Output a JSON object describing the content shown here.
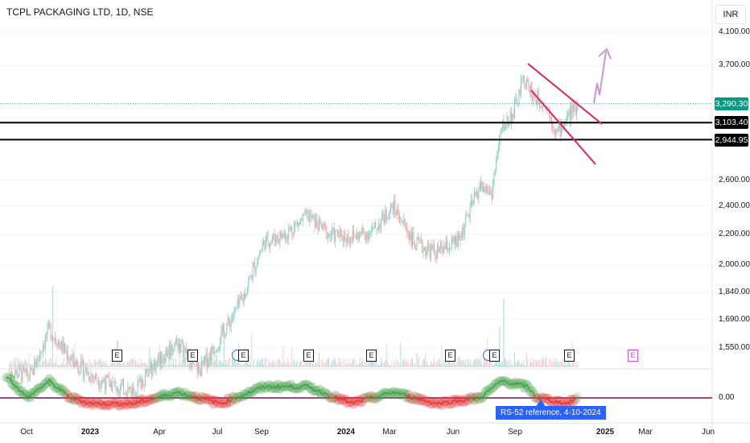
{
  "header": {
    "title": "TCPL PACKAGING LTD, 1D, NSE",
    "currency": "INR"
  },
  "price_tags": {
    "last": "3,290.30",
    "resistance": "3,103.40",
    "support": "2,944.95"
  },
  "indicator": {
    "zero_label": "0.00",
    "rs_tooltip": "RS-52 reference, 4-10-2024"
  },
  "events": [
    "E",
    "E",
    "E",
    "E",
    "E",
    "E",
    "E",
    "E"
  ],
  "colors": {
    "up": "#26a69a",
    "down": "#ef5350",
    "up_candle": "#7ed3c8",
    "down_candle": "#f4a3a3",
    "channel": "#e91e63",
    "arrow": "#ce93d8",
    "rs_line_up": "#43a047",
    "rs_line_down": "#e53935",
    "last_price": "#089981",
    "levels": "#000000"
  },
  "chart_data": {
    "type": "candlestick",
    "title": "TCPL PACKAGING LTD, 1D, NSE",
    "y_scale": "log",
    "y_ticks": [
      "4,100.00",
      "3,700.00",
      "3,290.30",
      "3,103.40",
      "2,944.95",
      "2,600.00",
      "2,400.00",
      "2,200.00",
      "2,000.00",
      "1,840.00",
      "1,690.00",
      "1,550.00"
    ],
    "x_ticks": [
      "Oct",
      "2023",
      "Apr",
      "Jul",
      "Sep",
      "2024",
      "Mar",
      "Jun",
      "Sep",
      "2025",
      "Mar",
      "Jun"
    ],
    "x_ticks_bold": [
      "2023",
      "2024",
      "2025"
    ],
    "price_path": [
      {
        "date": "2022-09-20",
        "close": 1440
      },
      {
        "date": "2022-10-20",
        "close": 1420
      },
      {
        "date": "2022-11-15",
        "close": 1640
      },
      {
        "date": "2022-12-15",
        "close": 1500
      },
      {
        "date": "2023-01-15",
        "close": 1420
      },
      {
        "date": "2023-02-15",
        "close": 1380
      },
      {
        "date": "2023-03-15",
        "close": 1360
      },
      {
        "date": "2023-04-15",
        "close": 1480
      },
      {
        "date": "2023-05-15",
        "close": 1580
      },
      {
        "date": "2023-06-15",
        "close": 1440
      },
      {
        "date": "2023-07-15",
        "close": 1600
      },
      {
        "date": "2023-08-15",
        "close": 1800
      },
      {
        "date": "2023-09-15",
        "close": 2150
      },
      {
        "date": "2023-10-15",
        "close": 2200
      },
      {
        "date": "2023-11-15",
        "close": 2330
      },
      {
        "date": "2023-12-15",
        "close": 2200
      },
      {
        "date": "2024-01-15",
        "close": 2180
      },
      {
        "date": "2024-02-15",
        "close": 2220
      },
      {
        "date": "2024-03-15",
        "close": 2400
      },
      {
        "date": "2024-04-15",
        "close": 2130
      },
      {
        "date": "2024-05-15",
        "close": 2080
      },
      {
        "date": "2024-06-15",
        "close": 2150
      },
      {
        "date": "2024-07-15",
        "close": 2550
      },
      {
        "date": "2024-08-01",
        "close": 2500
      },
      {
        "date": "2024-08-15",
        "close": 3050
      },
      {
        "date": "2024-09-01",
        "close": 3200
      },
      {
        "date": "2024-09-15",
        "close": 3550
      },
      {
        "date": "2024-10-01",
        "close": 3350
      },
      {
        "date": "2024-10-15",
        "close": 3300
      },
      {
        "date": "2024-11-01",
        "close": 3000
      },
      {
        "date": "2024-11-15",
        "close": 3150
      },
      {
        "date": "2024-12-01",
        "close": 3290
      }
    ],
    "levels": [
      {
        "name": "last",
        "value": 3290.3
      },
      {
        "name": "resistance",
        "value": 3103.4
      },
      {
        "name": "support",
        "value": 2944.95
      }
    ],
    "rs_series": [
      {
        "date": "2022-09-15",
        "value": 0.04
      },
      {
        "date": "2022-10-15",
        "value": 0.0
      },
      {
        "date": "2022-11-15",
        "value": 0.03
      },
      {
        "date": "2022-12-15",
        "value": 0.0
      },
      {
        "date": "2023-01-15",
        "value": -0.01
      },
      {
        "date": "2023-03-15",
        "value": -0.01
      },
      {
        "date": "2023-05-15",
        "value": 0.01
      },
      {
        "date": "2023-07-15",
        "value": -0.01
      },
      {
        "date": "2023-09-15",
        "value": 0.02
      },
      {
        "date": "2023-11-15",
        "value": 0.02
      },
      {
        "date": "2024-01-15",
        "value": -0.01
      },
      {
        "date": "2024-03-15",
        "value": 0.01
      },
      {
        "date": "2024-05-15",
        "value": -0.01
      },
      {
        "date": "2024-07-15",
        "value": 0.0
      },
      {
        "date": "2024-08-15",
        "value": 0.03
      },
      {
        "date": "2024-09-20",
        "value": 0.02
      },
      {
        "date": "2024-10-04",
        "value": 0.0
      },
      {
        "date": "2024-11-15",
        "value": -0.01
      },
      {
        "date": "2024-12-01",
        "value": 0.0
      }
    ],
    "rs_zero": 0.0
  }
}
